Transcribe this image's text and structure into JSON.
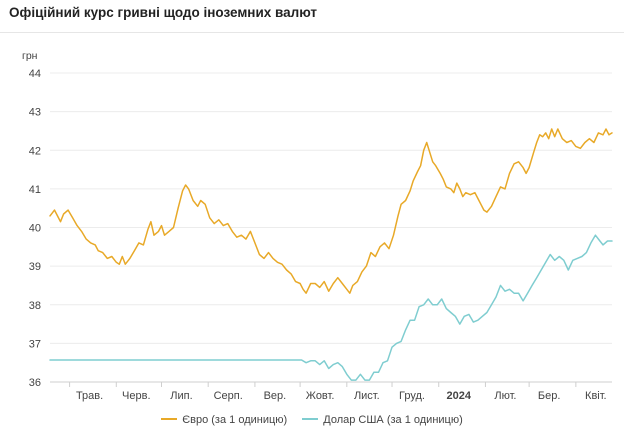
{
  "header": {
    "title": "Офіційний курс гривні щодо іноземних валют"
  },
  "chart_data": {
    "type": "line",
    "title": "Офіційний курс гривні щодо іноземних валют",
    "ylabel": "грн",
    "ylim": [
      36,
      44
    ],
    "yticks": [
      36,
      37,
      38,
      39,
      40,
      41,
      42,
      43,
      44
    ],
    "x_ticks": [
      {
        "label": "Трав.",
        "x": "2023-05-01",
        "bold": false
      },
      {
        "label": "Черв.",
        "x": "2023-06-01",
        "bold": false
      },
      {
        "label": "Лип.",
        "x": "2023-07-01",
        "bold": false
      },
      {
        "label": "Серп.",
        "x": "2023-08-01",
        "bold": false
      },
      {
        "label": "Вер.",
        "x": "2023-09-01",
        "bold": false
      },
      {
        "label": "Жовт.",
        "x": "2023-10-01",
        "bold": false
      },
      {
        "label": "Лист.",
        "x": "2023-11-01",
        "bold": false
      },
      {
        "label": "Груд.",
        "x": "2023-12-01",
        "bold": false
      },
      {
        "label": "2024",
        "x": "2024-01-01",
        "bold": true
      },
      {
        "label": "Лют.",
        "x": "2024-02-01",
        "bold": false
      },
      {
        "label": "Бер.",
        "x": "2024-03-01",
        "bold": false
      },
      {
        "label": "Квіт.",
        "x": "2024-04-01",
        "bold": false
      }
    ],
    "xlim": [
      "2023-04-18",
      "2024-04-25"
    ],
    "grid": true,
    "legend": "bottom",
    "series": [
      {
        "name": "Євро (за 1 одиницю)",
        "color": "#e8a928",
        "points": [
          [
            "2023-04-18",
            40.3
          ],
          [
            "2023-04-21",
            40.45
          ],
          [
            "2023-04-23",
            40.3
          ],
          [
            "2023-04-25",
            40.15
          ],
          [
            "2023-04-27",
            40.35
          ],
          [
            "2023-04-30",
            40.45
          ],
          [
            "2023-05-03",
            40.25
          ],
          [
            "2023-05-06",
            40.05
          ],
          [
            "2023-05-09",
            39.9
          ],
          [
            "2023-05-12",
            39.7
          ],
          [
            "2023-05-15",
            39.6
          ],
          [
            "2023-05-18",
            39.55
          ],
          [
            "2023-05-20",
            39.4
          ],
          [
            "2023-05-23",
            39.35
          ],
          [
            "2023-05-26",
            39.2
          ],
          [
            "2023-05-29",
            39.25
          ],
          [
            "2023-06-01",
            39.1
          ],
          [
            "2023-06-03",
            39.05
          ],
          [
            "2023-06-05",
            39.25
          ],
          [
            "2023-06-07",
            39.05
          ],
          [
            "2023-06-10",
            39.2
          ],
          [
            "2023-06-13",
            39.4
          ],
          [
            "2023-06-16",
            39.6
          ],
          [
            "2023-06-19",
            39.55
          ],
          [
            "2023-06-22",
            39.95
          ],
          [
            "2023-06-24",
            40.15
          ],
          [
            "2023-06-26",
            39.8
          ],
          [
            "2023-06-29",
            39.9
          ],
          [
            "2023-07-01",
            40.05
          ],
          [
            "2023-07-03",
            39.8
          ],
          [
            "2023-07-06",
            39.9
          ],
          [
            "2023-07-09",
            40.0
          ],
          [
            "2023-07-12",
            40.5
          ],
          [
            "2023-07-15",
            40.95
          ],
          [
            "2023-07-17",
            41.1
          ],
          [
            "2023-07-19",
            41.0
          ],
          [
            "2023-07-22",
            40.7
          ],
          [
            "2023-07-25",
            40.55
          ],
          [
            "2023-07-27",
            40.7
          ],
          [
            "2023-07-30",
            40.6
          ],
          [
            "2023-08-02",
            40.25
          ],
          [
            "2023-08-05",
            40.1
          ],
          [
            "2023-08-08",
            40.2
          ],
          [
            "2023-08-11",
            40.05
          ],
          [
            "2023-08-14",
            40.1
          ],
          [
            "2023-08-17",
            39.9
          ],
          [
            "2023-08-20",
            39.75
          ],
          [
            "2023-08-23",
            39.8
          ],
          [
            "2023-08-26",
            39.7
          ],
          [
            "2023-08-29",
            39.9
          ],
          [
            "2023-09-01",
            39.6
          ],
          [
            "2023-09-04",
            39.3
          ],
          [
            "2023-09-07",
            39.2
          ],
          [
            "2023-09-10",
            39.35
          ],
          [
            "2023-09-13",
            39.2
          ],
          [
            "2023-09-16",
            39.1
          ],
          [
            "2023-09-19",
            39.05
          ],
          [
            "2023-09-22",
            38.9
          ],
          [
            "2023-09-25",
            38.8
          ],
          [
            "2023-09-28",
            38.6
          ],
          [
            "2023-10-01",
            38.55
          ],
          [
            "2023-10-03",
            38.4
          ],
          [
            "2023-10-05",
            38.3
          ],
          [
            "2023-10-08",
            38.55
          ],
          [
            "2023-10-11",
            38.55
          ],
          [
            "2023-10-14",
            38.45
          ],
          [
            "2023-10-17",
            38.6
          ],
          [
            "2023-10-20",
            38.35
          ],
          [
            "2023-10-23",
            38.55
          ],
          [
            "2023-10-26",
            38.7
          ],
          [
            "2023-10-29",
            38.55
          ],
          [
            "2023-11-01",
            38.4
          ],
          [
            "2023-11-03",
            38.3
          ],
          [
            "2023-11-05",
            38.5
          ],
          [
            "2023-11-08",
            38.6
          ],
          [
            "2023-11-11",
            38.85
          ],
          [
            "2023-11-14",
            39.0
          ],
          [
            "2023-11-17",
            39.35
          ],
          [
            "2023-11-20",
            39.25
          ],
          [
            "2023-11-23",
            39.5
          ],
          [
            "2023-11-26",
            39.6
          ],
          [
            "2023-11-29",
            39.45
          ],
          [
            "2023-12-02",
            39.8
          ],
          [
            "2023-12-05",
            40.3
          ],
          [
            "2023-12-07",
            40.6
          ],
          [
            "2023-12-10",
            40.7
          ],
          [
            "2023-12-13",
            40.95
          ],
          [
            "2023-12-15",
            41.2
          ],
          [
            "2023-12-18",
            41.45
          ],
          [
            "2023-12-20",
            41.6
          ],
          [
            "2023-12-22",
            42.0
          ],
          [
            "2023-12-24",
            42.2
          ],
          [
            "2023-12-26",
            41.95
          ],
          [
            "2023-12-28",
            41.7
          ],
          [
            "2023-12-30",
            41.6
          ],
          [
            "2024-01-02",
            41.4
          ],
          [
            "2024-01-04",
            41.25
          ],
          [
            "2024-01-06",
            41.05
          ],
          [
            "2024-01-09",
            41.0
          ],
          [
            "2024-01-11",
            40.9
          ],
          [
            "2024-01-13",
            41.15
          ],
          [
            "2024-01-15",
            41.0
          ],
          [
            "2024-01-17",
            40.8
          ],
          [
            "2024-01-19",
            40.9
          ],
          [
            "2024-01-22",
            40.85
          ],
          [
            "2024-01-25",
            40.9
          ],
          [
            "2024-01-27",
            40.75
          ],
          [
            "2024-01-29",
            40.6
          ],
          [
            "2024-01-31",
            40.45
          ],
          [
            "2024-02-02",
            40.4
          ],
          [
            "2024-02-05",
            40.55
          ],
          [
            "2024-02-08",
            40.8
          ],
          [
            "2024-02-11",
            41.05
          ],
          [
            "2024-02-14",
            41.0
          ],
          [
            "2024-02-17",
            41.4
          ],
          [
            "2024-02-20",
            41.65
          ],
          [
            "2024-02-23",
            41.7
          ],
          [
            "2024-02-26",
            41.55
          ],
          [
            "2024-02-28",
            41.4
          ],
          [
            "2024-03-01",
            41.55
          ],
          [
            "2024-03-04",
            41.95
          ],
          [
            "2024-03-06",
            42.2
          ],
          [
            "2024-03-08",
            42.4
          ],
          [
            "2024-03-10",
            42.35
          ],
          [
            "2024-03-12",
            42.45
          ],
          [
            "2024-03-14",
            42.3
          ],
          [
            "2024-03-16",
            42.55
          ],
          [
            "2024-03-18",
            42.35
          ],
          [
            "2024-03-20",
            42.55
          ],
          [
            "2024-03-23",
            42.3
          ],
          [
            "2024-03-26",
            42.2
          ],
          [
            "2024-03-29",
            42.25
          ],
          [
            "2024-04-01",
            42.1
          ],
          [
            "2024-04-04",
            42.05
          ],
          [
            "2024-04-07",
            42.2
          ],
          [
            "2024-04-10",
            42.3
          ],
          [
            "2024-04-13",
            42.2
          ],
          [
            "2024-04-16",
            42.45
          ],
          [
            "2024-04-19",
            42.4
          ],
          [
            "2024-04-21",
            42.55
          ],
          [
            "2024-04-23",
            42.4
          ],
          [
            "2024-04-25",
            42.45
          ]
        ]
      },
      {
        "name": "Долар США (за 1 одиницю)",
        "color": "#7fcdd0",
        "points": [
          [
            "2023-04-18",
            36.57
          ],
          [
            "2023-10-02",
            36.57
          ],
          [
            "2023-10-05",
            36.5
          ],
          [
            "2023-10-08",
            36.55
          ],
          [
            "2023-10-11",
            36.55
          ],
          [
            "2023-10-14",
            36.45
          ],
          [
            "2023-10-17",
            36.55
          ],
          [
            "2023-10-20",
            36.35
          ],
          [
            "2023-10-23",
            36.45
          ],
          [
            "2023-10-26",
            36.5
          ],
          [
            "2023-10-29",
            36.4
          ],
          [
            "2023-11-01",
            36.2
          ],
          [
            "2023-11-04",
            36.05
          ],
          [
            "2023-11-07",
            36.05
          ],
          [
            "2023-11-10",
            36.2
          ],
          [
            "2023-11-13",
            36.05
          ],
          [
            "2023-11-16",
            36.05
          ],
          [
            "2023-11-19",
            36.25
          ],
          [
            "2023-11-22",
            36.25
          ],
          [
            "2023-11-25",
            36.5
          ],
          [
            "2023-11-28",
            36.55
          ],
          [
            "2023-12-01",
            36.9
          ],
          [
            "2023-12-04",
            37.0
          ],
          [
            "2023-12-07",
            37.05
          ],
          [
            "2023-12-10",
            37.35
          ],
          [
            "2023-12-13",
            37.6
          ],
          [
            "2023-12-16",
            37.6
          ],
          [
            "2023-12-19",
            37.95
          ],
          [
            "2023-12-22",
            38.0
          ],
          [
            "2023-12-25",
            38.15
          ],
          [
            "2023-12-28",
            38.0
          ],
          [
            "2023-12-31",
            38.0
          ],
          [
            "2024-01-03",
            38.15
          ],
          [
            "2024-01-06",
            37.9
          ],
          [
            "2024-01-09",
            37.8
          ],
          [
            "2024-01-12",
            37.7
          ],
          [
            "2024-01-15",
            37.5
          ],
          [
            "2024-01-18",
            37.7
          ],
          [
            "2024-01-21",
            37.75
          ],
          [
            "2024-01-24",
            37.55
          ],
          [
            "2024-01-27",
            37.6
          ],
          [
            "2024-01-30",
            37.7
          ],
          [
            "2024-02-02",
            37.8
          ],
          [
            "2024-02-05",
            38.0
          ],
          [
            "2024-02-08",
            38.2
          ],
          [
            "2024-02-11",
            38.5
          ],
          [
            "2024-02-14",
            38.35
          ],
          [
            "2024-02-17",
            38.4
          ],
          [
            "2024-02-20",
            38.3
          ],
          [
            "2024-02-23",
            38.3
          ],
          [
            "2024-02-26",
            38.1
          ],
          [
            "2024-02-29",
            38.3
          ],
          [
            "2024-03-03",
            38.5
          ],
          [
            "2024-03-06",
            38.7
          ],
          [
            "2024-03-09",
            38.9
          ],
          [
            "2024-03-12",
            39.1
          ],
          [
            "2024-03-15",
            39.3
          ],
          [
            "2024-03-18",
            39.15
          ],
          [
            "2024-03-21",
            39.25
          ],
          [
            "2024-03-24",
            39.15
          ],
          [
            "2024-03-27",
            38.9
          ],
          [
            "2024-03-30",
            39.15
          ],
          [
            "2024-04-02",
            39.2
          ],
          [
            "2024-04-05",
            39.25
          ],
          [
            "2024-04-08",
            39.35
          ],
          [
            "2024-04-11",
            39.6
          ],
          [
            "2024-04-14",
            39.8
          ],
          [
            "2024-04-17",
            39.65
          ],
          [
            "2024-04-19",
            39.55
          ],
          [
            "2024-04-22",
            39.65
          ],
          [
            "2024-04-25",
            39.65
          ]
        ]
      }
    ]
  }
}
